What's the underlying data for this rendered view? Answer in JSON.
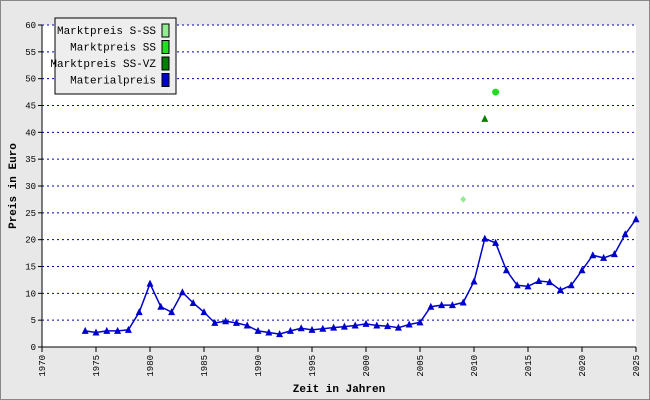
{
  "chart_data": {
    "type": "line",
    "x_label": "Zeit in Jahren",
    "y_label": "Preis in Euro",
    "xlim": [
      1970,
      2025
    ],
    "xticks": [
      1970,
      1975,
      1980,
      1985,
      1990,
      1995,
      2000,
      2005,
      2010,
      2015,
      2020,
      2025
    ],
    "ylim": [
      0,
      60
    ],
    "yticks": [
      0,
      5,
      10,
      15,
      20,
      25,
      30,
      35,
      40,
      45,
      50,
      55,
      60
    ],
    "grid": true,
    "legend_position": "top-left",
    "series": [
      {
        "name": "Marktpreis S-SS",
        "color": "#90ee90",
        "marker": "diamond",
        "x": [
          2009
        ],
        "values": [
          27.5
        ]
      },
      {
        "name": "Marktpreis SS",
        "color": "#22dd22",
        "marker": "circle",
        "x": [
          2012
        ],
        "values": [
          47.5
        ]
      },
      {
        "name": "Marktpreis SS-VZ",
        "color": "#008000",
        "marker": "triangle",
        "x": [
          2011
        ],
        "values": [
          42.5
        ]
      },
      {
        "name": "Materialpreis",
        "color": "#0000cc",
        "marker": "triangle",
        "line": true,
        "x": [
          1974,
          1975,
          1976,
          1977,
          1978,
          1979,
          1980,
          1981,
          1982,
          1983,
          1984,
          1985,
          1986,
          1987,
          1988,
          1989,
          1990,
          1991,
          1992,
          1993,
          1994,
          1995,
          1996,
          1997,
          1998,
          1999,
          2000,
          2001,
          2002,
          2003,
          2004,
          2005,
          2006,
          2007,
          2008,
          2009,
          2010,
          2011,
          2012,
          2013,
          2014,
          2015,
          2016,
          2017,
          2018,
          2019,
          2020,
          2021,
          2022,
          2023,
          2024,
          2025
        ],
        "values": [
          3.0,
          2.7,
          3.0,
          3.0,
          3.2,
          6.5,
          11.8,
          7.5,
          6.5,
          10.2,
          8.2,
          6.5,
          4.5,
          4.8,
          4.5,
          4.0,
          3.0,
          2.7,
          2.4,
          3.0,
          3.5,
          3.2,
          3.4,
          3.6,
          3.8,
          4.0,
          4.3,
          4.0,
          3.9,
          3.6,
          4.2,
          4.6,
          7.5,
          7.8,
          7.8,
          8.3,
          12.2,
          20.2,
          19.4,
          14.3,
          11.5,
          11.3,
          12.3,
          12.1,
          10.6,
          11.5,
          14.3,
          17.1,
          16.6,
          17.3,
          21.0,
          23.8
        ]
      }
    ]
  }
}
